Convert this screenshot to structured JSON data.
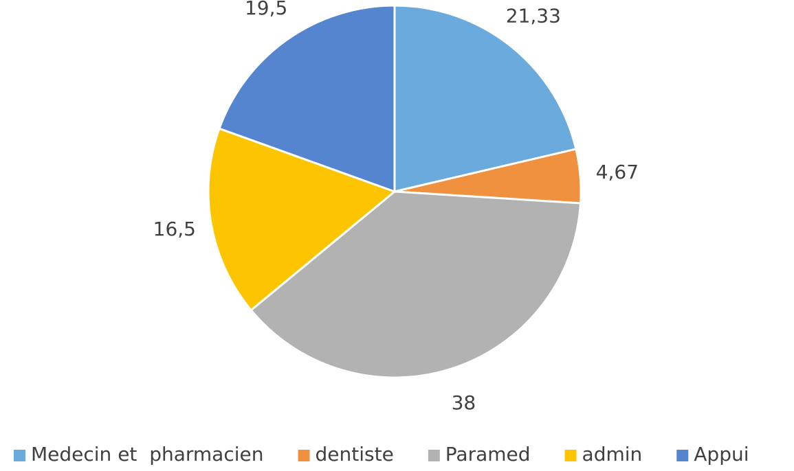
{
  "chart_data": {
    "type": "pie",
    "categories": [
      "Medecin et  pharmacien",
      "dentiste",
      "Paramed",
      "admin",
      "Appui"
    ],
    "values": [
      21.33,
      4.67,
      38,
      16.5,
      19.5
    ],
    "value_labels": [
      "21,33",
      "4,67",
      "38",
      "16,5",
      "19,5"
    ],
    "colors": [
      "#6aaadc",
      "#f0913f",
      "#b2b2b2",
      "#fdc500",
      "#5585cf"
    ],
    "legend": "bottom"
  }
}
